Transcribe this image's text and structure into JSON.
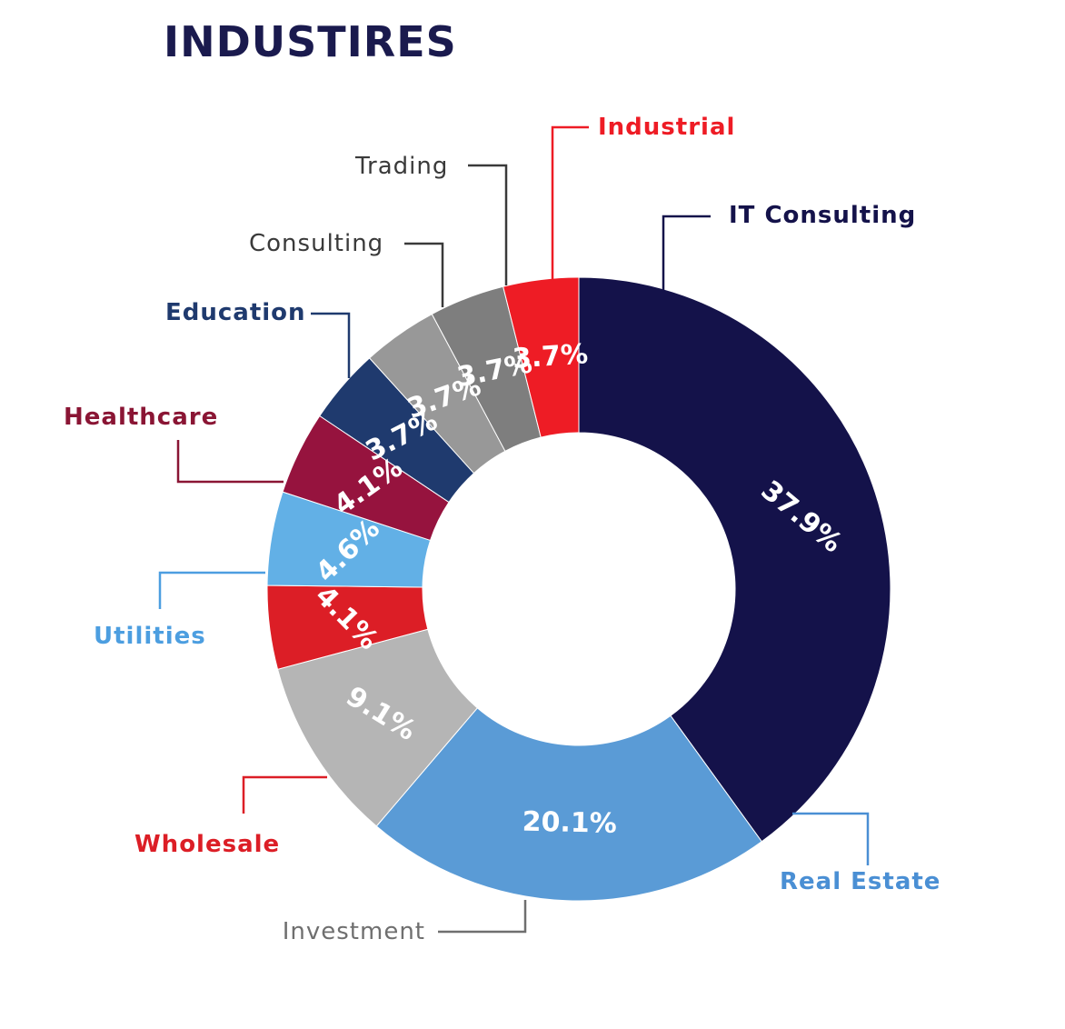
{
  "chart_data": {
    "type": "pie",
    "title": "INDUSTIRES",
    "title_color": "#1a1a4e",
    "variant": "donut",
    "start": "12 o'clock, clockwise",
    "slices": [
      {
        "label": "IT Consulting",
        "value": 37.9,
        "display": "37.9%",
        "color": "#14124a",
        "label_color": "#14124a",
        "label_bold": true
      },
      {
        "label": "Real Estate",
        "value": 20.1,
        "display": "20.1%",
        "color": "#5a9bd6",
        "label_color": "#4a8fd4",
        "label_bold": true
      },
      {
        "label": "Investment",
        "value": 9.1,
        "display": "9.1%",
        "color": "#b5b5b5",
        "label_color": "#6f6f6f",
        "label_bold": false
      },
      {
        "label": "Wholesale",
        "value": 4.1,
        "display": "4.1%",
        "color": "#dc1e26",
        "label_color": "#dc1e26",
        "label_bold": true
      },
      {
        "label": "Utilities",
        "value": 4.6,
        "display": "4.6%",
        "color": "#62b0e6",
        "label_color": "#4c9ee0",
        "label_bold": true
      },
      {
        "label": "Healthcare",
        "value": 4.1,
        "display": "4.1%",
        "color": "#96133e",
        "label_color": "#8a1534",
        "label_bold": true
      },
      {
        "label": "Education",
        "value": 3.7,
        "display": "3.7%",
        "color": "#1f3a6e",
        "label_color": "#1f3a6e",
        "label_bold": true
      },
      {
        "label": "Consulting",
        "value": 3.7,
        "display": "3.7%",
        "color": "#989898",
        "label_color": "#3a3a3a",
        "label_bold": false
      },
      {
        "label": "Trading",
        "value": 3.7,
        "display": "3.7%",
        "color": "#7e7e7e",
        "label_color": "#3a3a3a",
        "label_bold": false
      },
      {
        "label": "Industrial",
        "value": 3.7,
        "display": "3.7%",
        "color": "#ee1c25",
        "label_color": "#ee1c25",
        "label_bold": true
      }
    ]
  }
}
